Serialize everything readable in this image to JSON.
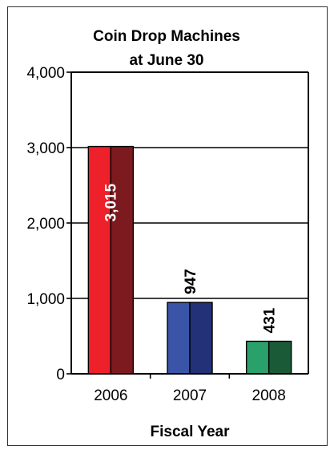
{
  "chart_data": {
    "type": "bar",
    "title_lines": [
      "Coin Drop Machines",
      "at June 30"
    ],
    "xlabel": "Fiscal Year",
    "ylabel": "",
    "categories": [
      "2006",
      "2007",
      "2008"
    ],
    "values": [
      3015,
      947,
      431
    ],
    "value_labels": [
      "3,015",
      "947",
      "431"
    ],
    "ylim": [
      0,
      4000
    ],
    "yticks": [
      0,
      1000,
      2000,
      3000,
      4000
    ],
    "ytick_labels": [
      "0",
      "1,000",
      "2,000",
      "3,000",
      "4,000"
    ],
    "grid": true,
    "bar_colors": [
      {
        "front": "#ee2029",
        "side": "#7d1a1f"
      },
      {
        "front": "#3a55a8",
        "side": "#233178"
      },
      {
        "front": "#2aa06a",
        "side": "#1a5a37"
      }
    ]
  }
}
